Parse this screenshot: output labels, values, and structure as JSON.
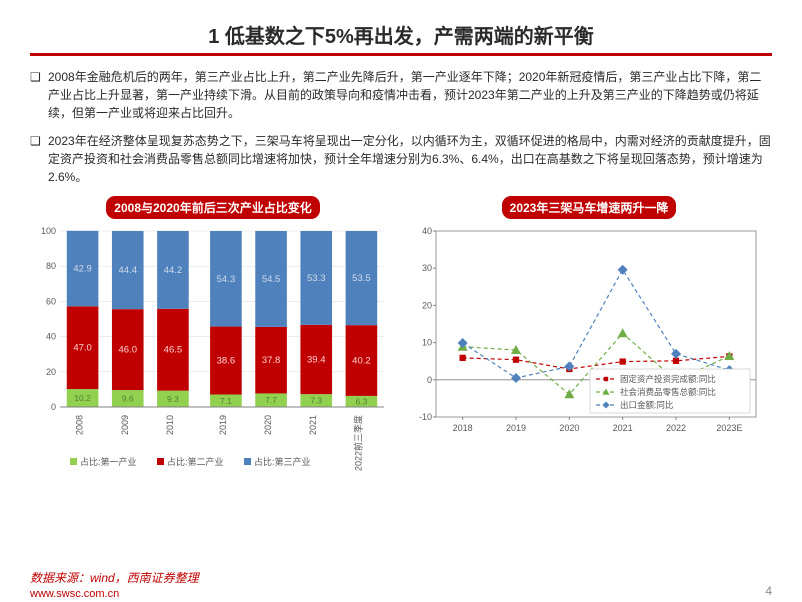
{
  "title": "1 低基数之下5%再出发，产需两端的新平衡",
  "para1": "2008年金融危机后的两年，第三产业占比上升，第二产业先降后升，第一产业逐年下降；2020年新冠疫情后，第三产业占比下降，第二产业占比上升显著，第一产业持续下滑。从目前的政策导向和疫情冲击看，预计2023年第二产业的上升及第三产业的下降趋势或仍将延续，但第一产业或将迎来占比回升。",
  "para2": "2023年在经济整体呈现复苏态势之下，三架马车将呈现出一定分化，以内循环为主，双循环促进的格局中，内需对经济的贡献度提升，固定资产投资和社会消费品零售总额同比增速将加快，预计全年增速分别为6.3%、6.4%，出口在高基数之下将呈现回落态势，预计增速为2.6%。",
  "chart_left": {
    "title": "2008与2020年前后三次产业占比变化",
    "type": "stacked_bar",
    "categories": [
      "2008",
      "2009",
      "2010",
      "2019",
      "2020",
      "2021",
      "2022前三季度"
    ],
    "series": [
      {
        "name": "占比:第一产业",
        "color": "#92d050",
        "values": [
          10.2,
          9.6,
          9.3,
          7.1,
          7.7,
          7.3,
          6.3
        ]
      },
      {
        "name": "占比:第二产业",
        "color": "#c00000",
        "values": [
          47.0,
          46.0,
          46.5,
          38.6,
          37.8,
          39.4,
          40.2
        ]
      },
      {
        "name": "占比:第三产业",
        "color": "#4f81bd",
        "values": [
          42.9,
          44.4,
          44.2,
          54.3,
          54.5,
          53.3,
          53.5
        ]
      }
    ],
    "ylim": [
      0,
      100
    ],
    "ytick_step": 20,
    "label_fontsize": 9,
    "axis_fontsize": 9,
    "grid_color": "#d9d9d9",
    "background": "#ffffff",
    "bar_width": 0.7,
    "label_colors": {
      "primary": "#92d050",
      "secondary": "#c00000",
      "tertiary": "#aab9d0"
    }
  },
  "chart_right": {
    "title": "2023年三架马车增速两升一降",
    "type": "line_marker",
    "categories": [
      "2018",
      "2019",
      "2020",
      "2021",
      "2022",
      "2023E"
    ],
    "series": [
      {
        "name": "固定资产投资完成额:同比",
        "color": "#c00000",
        "marker": "square",
        "dash": "4,3",
        "values": [
          5.9,
          5.4,
          2.9,
          4.9,
          5.1,
          6.3
        ]
      },
      {
        "name": "社会消费品零售总额:同比",
        "color": "#70ad47",
        "marker": "triangle",
        "dash": "4,3",
        "values": [
          8.9,
          8.0,
          -3.9,
          12.5,
          -0.2,
          6.4
        ]
      },
      {
        "name": "出口金额:同比",
        "color": "#4f81bd",
        "marker": "diamond",
        "dash": "4,3",
        "values": [
          9.9,
          0.5,
          3.6,
          29.6,
          7.0,
          2.6
        ]
      }
    ],
    "ylim": [
      -10,
      40
    ],
    "ytick_step": 10,
    "marker_size": 5,
    "line_width": 1.2,
    "grid_color": "#bfbfbf",
    "axis_fontsize": 9
  },
  "source_label": "数据来源：wind，西南证券整理",
  "url": "www.swsc.com.cn",
  "pagenum": "4"
}
